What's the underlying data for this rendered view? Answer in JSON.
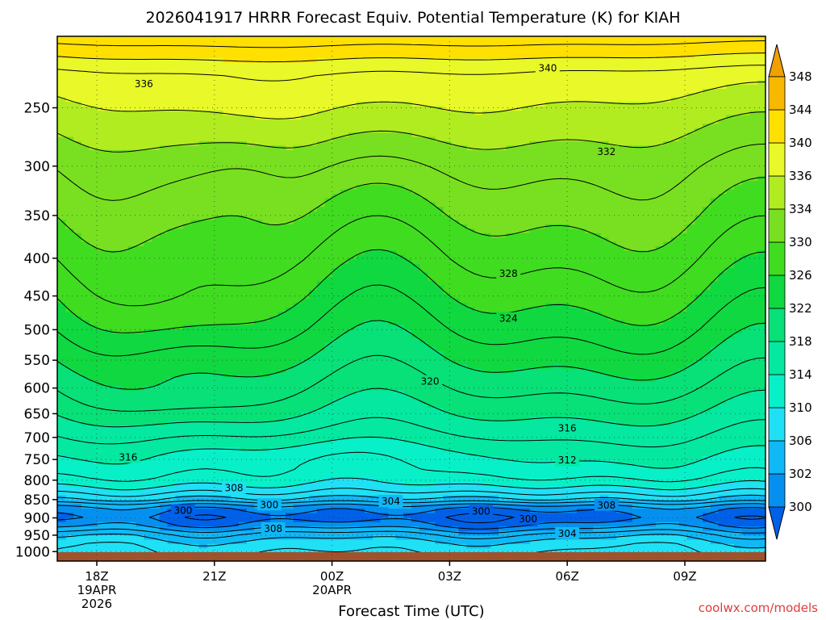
{
  "chart_data": {
    "type": "heatmap",
    "title": "2026041917 HRRR Forecast Equiv. Potential Temperature (K) for KIAH",
    "xlabel": "Forecast Time (UTC)",
    "ylabel": "",
    "credit": "coolwx.com/models",
    "x_ticks": [
      {
        "hour": 0,
        "lines": [
          "18Z",
          "19APR",
          "2026"
        ]
      },
      {
        "hour": 3,
        "lines": [
          "21Z"
        ]
      },
      {
        "hour": 6,
        "lines": [
          "00Z",
          "20APR"
        ]
      },
      {
        "hour": 9,
        "lines": [
          "03Z"
        ]
      },
      {
        "hour": 12,
        "lines": [
          "06Z"
        ]
      },
      {
        "hour": 15,
        "lines": [
          "09Z"
        ]
      }
    ],
    "xlim": [
      -1,
      17
    ],
    "y_scale": "log-pressure",
    "ylim": [
      1030,
      200
    ],
    "y_ticks": [
      250,
      300,
      350,
      400,
      450,
      500,
      550,
      600,
      650,
      700,
      750,
      800,
      850,
      900,
      950,
      1000
    ],
    "grid": true,
    "colorbar": {
      "levels": [
        298,
        300,
        302,
        306,
        310,
        314,
        318,
        322,
        326,
        330,
        334,
        336,
        340,
        344,
        348,
        350
      ],
      "tick_labels": [
        "300",
        "302",
        "306",
        "310",
        "314",
        "318",
        "322",
        "326",
        "330",
        "334",
        "336",
        "340",
        "344",
        "348"
      ],
      "colors": [
        "#0060e8",
        "#0590f0",
        "#10b8f5",
        "#20e0f5",
        "#08f0c8",
        "#05e8a0",
        "#08e078",
        "#10d840",
        "#40dc20",
        "#78e020",
        "#b0ec20",
        "#e8f828",
        "#ffe000",
        "#f8b800",
        "#f0a000"
      ]
    },
    "pressure_profile": {
      "levels": [
        1030,
        1000,
        975,
        950,
        925,
        900,
        875,
        860,
        850,
        825,
        800,
        775,
        750,
        700,
        650,
        600,
        550,
        500,
        450,
        400,
        350,
        300,
        250,
        225,
        200
      ],
      "theta_e": [
        307,
        308,
        307,
        305,
        301.5,
        299.5,
        301,
        303.5,
        306,
        309,
        311.5,
        313,
        314,
        316,
        318,
        320,
        322,
        324,
        326,
        328,
        330,
        332,
        335,
        337,
        343
      ]
    },
    "contour_labels": [
      {
        "value": 340,
        "hour": 11.5,
        "p": 221
      },
      {
        "value": 336,
        "hour": 1.2,
        "p": 232
      },
      {
        "value": 332,
        "hour": 13.0,
        "p": 287
      },
      {
        "value": 328,
        "hour": 10.5,
        "p": 420
      },
      {
        "value": 324,
        "hour": 10.5,
        "p": 483
      },
      {
        "value": 320,
        "hour": 8.5,
        "p": 588
      },
      {
        "value": 316,
        "hour": 12.0,
        "p": 680
      },
      {
        "value": 316,
        "hour": 0.8,
        "p": 745
      },
      {
        "value": 312,
        "hour": 12.0,
        "p": 752
      },
      {
        "value": 308,
        "hour": 3.5,
        "p": 820
      },
      {
        "value": 308,
        "hour": 4.5,
        "p": 931
      },
      {
        "value": 308,
        "hour": 13.0,
        "p": 865
      },
      {
        "value": 304,
        "hour": 7.5,
        "p": 855
      },
      {
        "value": 304,
        "hour": 12.0,
        "p": 945
      },
      {
        "value": 300,
        "hour": 4.4,
        "p": 864
      },
      {
        "value": 300,
        "hour": 2.2,
        "p": 880
      },
      {
        "value": 300,
        "hour": 9.8,
        "p": 882
      },
      {
        "value": 300,
        "hour": 11.0,
        "p": 903
      }
    ]
  }
}
